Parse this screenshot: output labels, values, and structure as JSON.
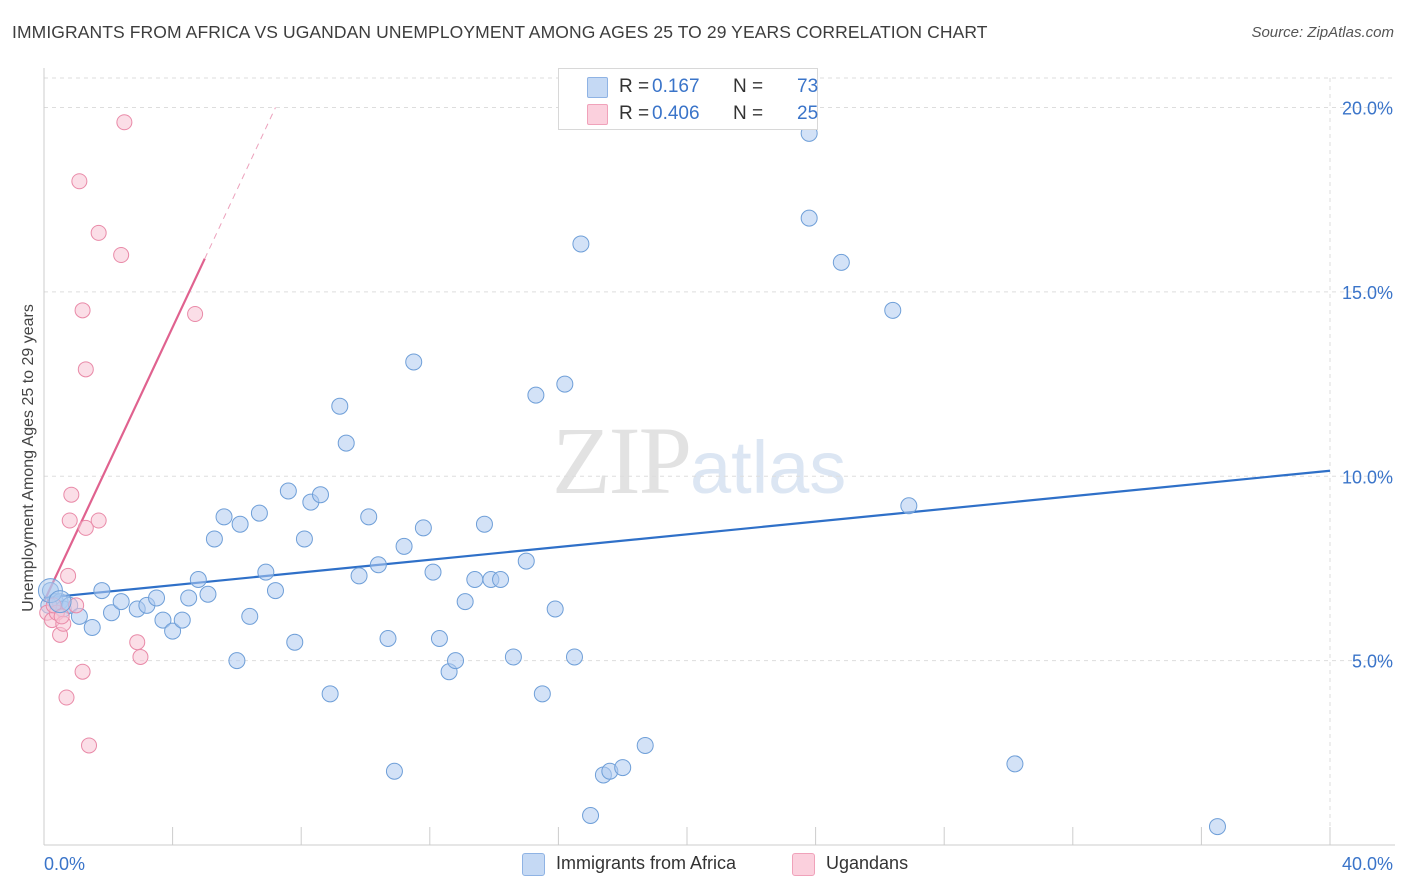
{
  "header": {
    "title": "IMMIGRANTS FROM AFRICA VS UGANDAN UNEMPLOYMENT AMONG AGES 25 TO 29 YEARS CORRELATION CHART",
    "source": "Source: ZipAtlas.com"
  },
  "watermark": {
    "zip": "ZIP",
    "atlas": "atlas"
  },
  "legend": {
    "rows": [
      {
        "r_label": "R =",
        "r_value": "0.167",
        "n_label": "N =",
        "n_value": "73"
      },
      {
        "r_label": "R =",
        "r_value": "0.406",
        "n_label": "N =",
        "n_value": "25"
      }
    ]
  },
  "colors": {
    "blue_fill": "#aecbf0",
    "blue_stroke": "#6f9fd8",
    "blue_line": "#2f70c8",
    "pink_fill": "#f8c3d3",
    "pink_stroke": "#e98aa8",
    "pink_line": "#e0628f",
    "grid": "#dddddd",
    "tick_text": "#3a74c9"
  },
  "chart_data": {
    "type": "scatter",
    "title": "IMMIGRANTS FROM AFRICA VS UGANDAN UNEMPLOYMENT AMONG AGES 25 TO 29 YEARS CORRELATION CHART",
    "xlabel": "",
    "ylabel": "Unemployment Among Ages 25 to 29 years",
    "xlim": [
      0,
      40
    ],
    "ylim": [
      0,
      20.8
    ],
    "x_tick_labels": [
      "0.0%",
      "40.0%"
    ],
    "y_ticks": [
      5,
      10,
      15,
      20
    ],
    "y_tick_labels": [
      "5.0%",
      "10.0%",
      "15.0%",
      "20.0%"
    ],
    "grid": true,
    "legend_position": "bottom-center",
    "series": [
      {
        "name": "Immigrants from Africa",
        "r": 0.167,
        "n": 73,
        "trend": {
          "x0": 0,
          "y0": 6.7,
          "x1": 40,
          "y1": 10.15
        },
        "points": [
          [
            0.2,
            6.9
          ],
          [
            0.35,
            6.6
          ],
          [
            0.5,
            6.6
          ],
          [
            0.6,
            6.4
          ],
          [
            0.8,
            6.5
          ],
          [
            1.1,
            6.2
          ],
          [
            1.5,
            5.9
          ],
          [
            1.8,
            6.9
          ],
          [
            2.1,
            6.3
          ],
          [
            2.4,
            6.6
          ],
          [
            2.9,
            6.4
          ],
          [
            3.2,
            6.5
          ],
          [
            3.5,
            6.7
          ],
          [
            3.7,
            6.1
          ],
          [
            4.0,
            5.8
          ],
          [
            4.3,
            6.1
          ],
          [
            4.5,
            6.7
          ],
          [
            4.8,
            7.2
          ],
          [
            5.1,
            6.8
          ],
          [
            5.3,
            8.3
          ],
          [
            5.6,
            8.9
          ],
          [
            6.0,
            5.0
          ],
          [
            6.1,
            8.7
          ],
          [
            6.4,
            6.2
          ],
          [
            6.7,
            9.0
          ],
          [
            6.9,
            7.4
          ],
          [
            7.2,
            6.9
          ],
          [
            7.6,
            9.6
          ],
          [
            7.8,
            5.5
          ],
          [
            8.1,
            8.3
          ],
          [
            8.3,
            9.3
          ],
          [
            8.6,
            9.5
          ],
          [
            8.9,
            4.1
          ],
          [
            9.2,
            11.9
          ],
          [
            9.4,
            10.9
          ],
          [
            9.8,
            7.3
          ],
          [
            10.1,
            8.9
          ],
          [
            10.4,
            7.6
          ],
          [
            10.7,
            5.6
          ],
          [
            10.9,
            2.0
          ],
          [
            11.2,
            8.1
          ],
          [
            11.5,
            13.1
          ],
          [
            11.8,
            8.6
          ],
          [
            12.1,
            7.4
          ],
          [
            12.3,
            5.6
          ],
          [
            12.6,
            4.7
          ],
          [
            12.8,
            5.0
          ],
          [
            13.1,
            6.6
          ],
          [
            13.4,
            7.2
          ],
          [
            13.7,
            8.7
          ],
          [
            13.9,
            7.2
          ],
          [
            14.2,
            7.2
          ],
          [
            14.6,
            5.1
          ],
          [
            15.0,
            7.7
          ],
          [
            15.3,
            12.2
          ],
          [
            15.5,
            4.1
          ],
          [
            15.9,
            6.4
          ],
          [
            16.2,
            12.5
          ],
          [
            16.5,
            5.1
          ],
          [
            16.7,
            16.3
          ],
          [
            17.0,
            0.8
          ],
          [
            17.4,
            1.9
          ],
          [
            17.6,
            2.0
          ],
          [
            18.0,
            2.1
          ],
          [
            18.7,
            2.7
          ],
          [
            23.8,
            17.0
          ],
          [
            23.8,
            19.3
          ],
          [
            24.8,
            15.8
          ],
          [
            26.4,
            14.5
          ],
          [
            26.9,
            9.2
          ],
          [
            30.2,
            2.2
          ],
          [
            36.5,
            0.5
          ],
          [
            0.15,
            6.5
          ]
        ]
      },
      {
        "name": "Ugandans",
        "r": 0.406,
        "n": 25,
        "trend": {
          "x0": 0,
          "y0": 6.6,
          "x1": 5.0,
          "y1": 15.9,
          "dash_to_x": 7.2,
          "dash_to_y": 20.0
        },
        "points": [
          [
            0.1,
            6.3
          ],
          [
            0.25,
            6.1
          ],
          [
            0.4,
            6.3
          ],
          [
            0.5,
            5.7
          ],
          [
            0.6,
            6.0
          ],
          [
            0.7,
            4.0
          ],
          [
            0.8,
            8.8
          ],
          [
            0.75,
            7.3
          ],
          [
            0.85,
            9.5
          ],
          [
            1.0,
            6.5
          ],
          [
            1.1,
            18.0
          ],
          [
            1.2,
            14.5
          ],
          [
            1.2,
            4.7
          ],
          [
            1.3,
            12.9
          ],
          [
            1.3,
            8.6
          ],
          [
            1.4,
            2.7
          ],
          [
            1.7,
            16.6
          ],
          [
            1.7,
            8.8
          ],
          [
            2.4,
            16.0
          ],
          [
            2.5,
            19.6
          ],
          [
            2.9,
            5.5
          ],
          [
            3.0,
            5.1
          ],
          [
            4.7,
            14.4
          ],
          [
            0.3,
            6.5
          ],
          [
            0.55,
            6.2
          ]
        ]
      }
    ]
  },
  "bottom_legend": {
    "items": [
      {
        "label": "Immigrants from Africa"
      },
      {
        "label": "Ugandans"
      }
    ]
  }
}
